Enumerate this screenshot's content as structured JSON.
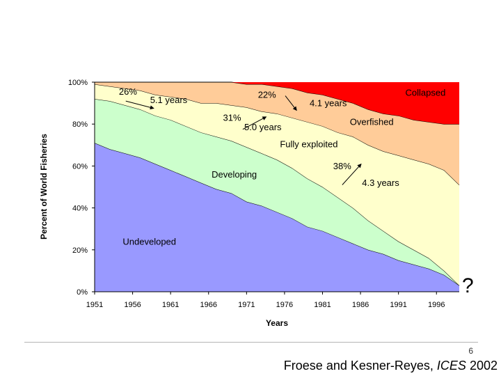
{
  "chart_data": {
    "type": "area",
    "stacked": true,
    "x": [
      1951,
      1953,
      1955,
      1957,
      1959,
      1961,
      1963,
      1965,
      1967,
      1969,
      1971,
      1973,
      1975,
      1977,
      1979,
      1981,
      1983,
      1985,
      1987,
      1989,
      1991,
      1993,
      1995,
      1997,
      1999
    ],
    "xticks": [
      "1951",
      "1956",
      "1961",
      "1966",
      "1971",
      "1976",
      "1981",
      "1986",
      "1991",
      "1996"
    ],
    "yticks": [
      "0%",
      "20%",
      "40%",
      "60%",
      "80%",
      "100%"
    ],
    "ylim": [
      0,
      100
    ],
    "xlim": [
      1951,
      1999
    ],
    "ylabel": "Percent of World Fisheries",
    "xlabel": "Years",
    "series": [
      {
        "name": "Undeveloped",
        "color": "#9999ff",
        "values": [
          71,
          68,
          66,
          64,
          61,
          58,
          55,
          52,
          49,
          47,
          43,
          41,
          38,
          35,
          31,
          29,
          26,
          23,
          20,
          18,
          15,
          13,
          11,
          8,
          3
        ]
      },
      {
        "name": "Developing",
        "color": "#ccffcc",
        "values": [
          21,
          23,
          23,
          23,
          23,
          24,
          24,
          24,
          25,
          25,
          26,
          25,
          25,
          24,
          23,
          21,
          19,
          17,
          14,
          11,
          9,
          7,
          5,
          2,
          0
        ]
      },
      {
        "name": "Fully exploited",
        "color": "#ffffcc",
        "values": [
          7,
          7,
          8,
          9,
          10,
          11,
          13,
          14,
          16,
          17,
          19,
          20,
          22,
          24,
          27,
          29,
          31,
          34,
          36,
          38,
          41,
          43,
          45,
          48,
          48
        ]
      },
      {
        "name": "Overfished",
        "color": "#ffcc99",
        "values": [
          1,
          2,
          3,
          4,
          6,
          7,
          8,
          10,
          10,
          11,
          11,
          13,
          13,
          14,
          14,
          15,
          16,
          16,
          17,
          18,
          19,
          19,
          20,
          22,
          29
        ]
      },
      {
        "name": "Collapsed",
        "color": "#ff0000",
        "values": [
          0,
          0,
          0,
          0,
          0,
          0,
          0,
          0,
          0,
          0,
          1,
          1,
          2,
          3,
          5,
          6,
          8,
          10,
          13,
          15,
          16,
          18,
          19,
          20,
          20
        ]
      }
    ],
    "annotations": [
      {
        "text": "26%",
        "x": 1954.2,
        "y": 94
      },
      {
        "text": "5.1 years",
        "x": 1958.3,
        "y": 90
      },
      {
        "text": "22%",
        "x": 1972.5,
        "y": 92.5
      },
      {
        "text": "4.1 years",
        "x": 1979.3,
        "y": 88.5
      },
      {
        "text": "Collapsed",
        "x": 1991.9,
        "y": 93.5
      },
      {
        "text": "31%",
        "x": 1967.9,
        "y": 81.5
      },
      {
        "text": "5.0 years",
        "x": 1970.7,
        "y": 77
      },
      {
        "text": "Overfished",
        "x": 1984.6,
        "y": 79.5
      },
      {
        "text": "Fully exploited",
        "x": 1975.4,
        "y": 69
      },
      {
        "text": "38%",
        "x": 1982.4,
        "y": 58.5
      },
      {
        "text": "Developing",
        "x": 1966.4,
        "y": 54.5
      },
      {
        "text": "4.3 years",
        "x": 1986.2,
        "y": 50.5
      },
      {
        "text": "Undeveloped",
        "x": 1954.7,
        "y": 22.5
      }
    ],
    "arrows": [
      {
        "from": [
          1955.1,
          91
        ],
        "to": [
          1958.8,
          87.5
        ]
      },
      {
        "from": [
          1976.1,
          93.5
        ],
        "to": [
          1977.6,
          86.5
        ]
      },
      {
        "from": [
          1970.5,
          77.5
        ],
        "to": [
          1973.6,
          83.5
        ]
      },
      {
        "from": [
          1983.6,
          51
        ],
        "to": [
          1986.1,
          61
        ]
      }
    ],
    "question_mark": "?"
  },
  "footer": {
    "slide_number": "6",
    "authors": "Froese and Kesner-Reyes,",
    "journal": "ICES",
    "year": "2002"
  }
}
